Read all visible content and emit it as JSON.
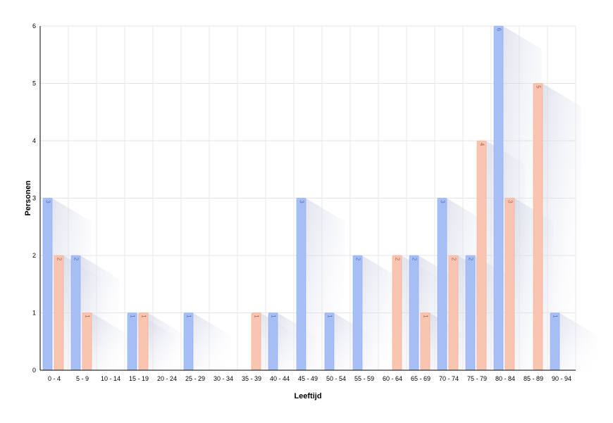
{
  "chart_data": {
    "type": "bar",
    "xlabel": "Leeftijd",
    "ylabel": "Personen",
    "ylim": [
      0,
      6
    ],
    "yticks": [
      "0",
      "1",
      "2",
      "3",
      "4",
      "5",
      "6"
    ],
    "grid": true,
    "legend": "none",
    "categories": [
      "0 - 4",
      "5 - 9",
      "10 - 14",
      "15 - 19",
      "20 - 24",
      "25 - 29",
      "30 - 34",
      "35 - 39",
      "40 - 44",
      "45 - 49",
      "50 - 54",
      "55 - 59",
      "60 - 64",
      "65 - 69",
      "70 - 74",
      "75 - 79",
      "80 - 84",
      "85 - 89",
      "90 - 94"
    ],
    "series": [
      {
        "color": "#a8bff5",
        "stroke": "#8aa6ef",
        "label_color": "#5b6fa8",
        "values": [
          3,
          2,
          0,
          1,
          0,
          1,
          0,
          0,
          1,
          3,
          1,
          2,
          0,
          2,
          3,
          2,
          6,
          0,
          1
        ]
      },
      {
        "color": "#f9c5b1",
        "stroke": "#f0a98f",
        "label_color": "#a8644a",
        "values": [
          2,
          1,
          0,
          1,
          0,
          0,
          0,
          1,
          0,
          0,
          0,
          0,
          2,
          1,
          2,
          4,
          3,
          5,
          0
        ]
      }
    ]
  }
}
